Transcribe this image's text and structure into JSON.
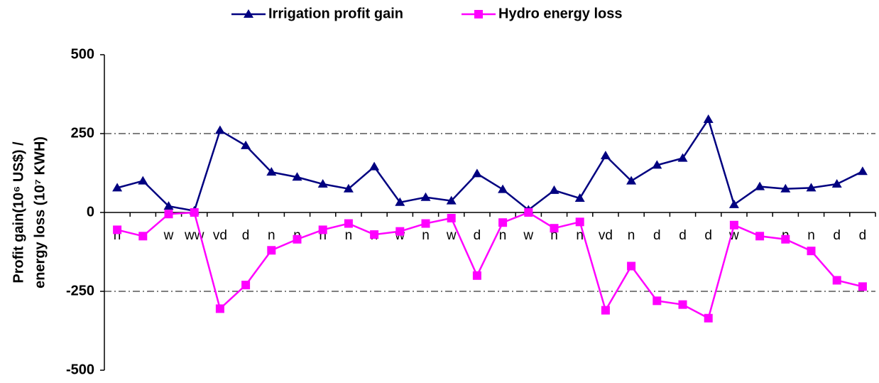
{
  "chart_data": {
    "type": "line",
    "y_label": [
      "Profit gain(10⁶ US$) /",
      "energy loss (10⁷ KWH)"
    ],
    "categories": [
      "n",
      "n",
      "w",
      "ww",
      "vd",
      "d",
      "n",
      "n",
      "n",
      "n",
      "n",
      "w",
      "n",
      "w",
      "d",
      "n",
      "w",
      "n",
      "n",
      "vd",
      "n",
      "d",
      "d",
      "d",
      "w",
      "n",
      "n",
      "n",
      "d",
      "d"
    ],
    "series": [
      {
        "name": "Irrigation profit gain",
        "color": "#000080",
        "marker": "triangle",
        "values": [
          78,
          100,
          20,
          5,
          260,
          212,
          128,
          112,
          90,
          75,
          145,
          32,
          48,
          37,
          123,
          73,
          8,
          70,
          45,
          180,
          100,
          150,
          172,
          295,
          25,
          82,
          75,
          78,
          90,
          130
        ]
      },
      {
        "name": "Hydro energy loss",
        "color": "#ff00ff",
        "marker": "square",
        "values": [
          -55,
          -75,
          -5,
          0,
          -305,
          -230,
          -120,
          -85,
          -55,
          -35,
          -70,
          -60,
          -35,
          -18,
          -200,
          -32,
          0,
          -50,
          -30,
          -310,
          -170,
          -280,
          -292,
          -335,
          -40,
          -75,
          -85,
          -122,
          -215,
          -235
        ]
      }
    ],
    "ylim": [
      -500,
      500
    ],
    "yticks": [
      500,
      250,
      0,
      -250,
      -500
    ],
    "grid": true,
    "legend": "top"
  }
}
